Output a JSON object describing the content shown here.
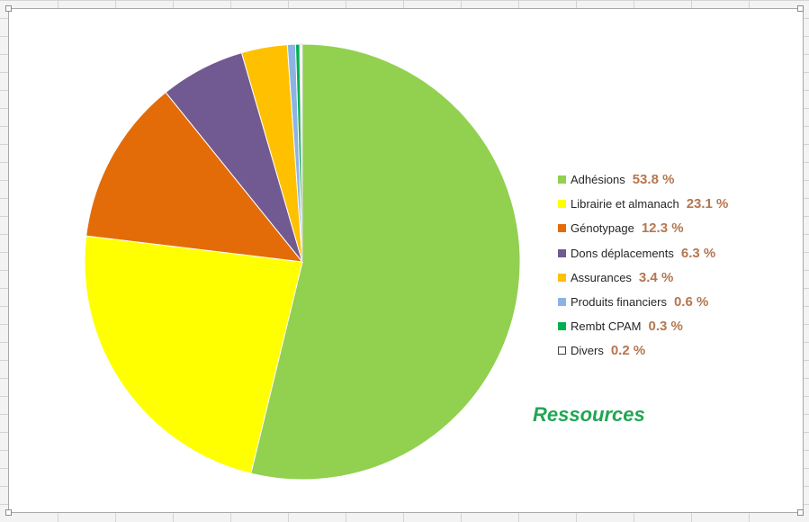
{
  "chart_data": {
    "type": "pie",
    "title": "Ressources",
    "legend_position": "right",
    "slices": [
      {
        "label": "Adhésions",
        "value": 53.8,
        "value_label": "53.8 %",
        "color": "#92d050"
      },
      {
        "label": "Librairie et almanach",
        "value": 23.1,
        "value_label": "23.1 %",
        "color": "#ffff00"
      },
      {
        "label": "Génotypage",
        "value": 12.3,
        "value_label": "12.3 %",
        "color": "#e36c09"
      },
      {
        "label": "Dons déplacements",
        "value": 6.3,
        "value_label": "6.3 %",
        "color": "#715991"
      },
      {
        "label": "Assurances",
        "value": 3.4,
        "value_label": "3.4 %",
        "color": "#ffc000"
      },
      {
        "label": "Produits financiers",
        "value": 0.6,
        "value_label": "0.6 %",
        "color": "#8db3e2"
      },
      {
        "label": "Rembt CPAM",
        "value": 0.3,
        "value_label": "0.3 %",
        "color": "#00b050"
      },
      {
        "label": "Divers",
        "value": 0.2,
        "value_label": "0.2 %",
        "color": "#ffffff"
      }
    ]
  },
  "colors": {
    "title": "#22a653",
    "value_text": "#b5764f",
    "label_text": "#262626"
  }
}
